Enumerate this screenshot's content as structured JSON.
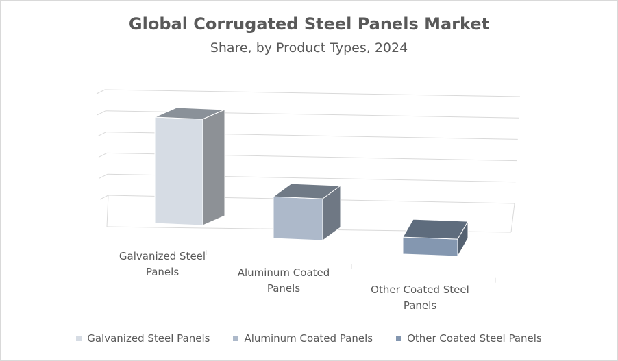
{
  "chart_data": {
    "type": "bar",
    "title": "Global Corrugated Steel Panels Market",
    "subtitle": "Share, by Product Types, 2024",
    "categories": [
      {
        "label_lines": [
          "Galvanized Steel",
          "Panels"
        ]
      },
      {
        "label_lines": [
          "Aluminum Coated",
          "Panels"
        ]
      },
      {
        "label_lines": [
          "Other Coated Steel",
          "Panels"
        ]
      }
    ],
    "values": [
      56,
      22,
      9
    ],
    "ylim": [
      0,
      70
    ],
    "gridlines": [
      0,
      14,
      28,
      42,
      56,
      70
    ],
    "legend": [
      {
        "name": "Galvanized Steel Panels",
        "color": "#d6dce4"
      },
      {
        "name": "Aluminum Coated Panels",
        "color": "#adb9ca"
      },
      {
        "name": "Other Coated Steel Panels",
        "color": "#8497b0"
      }
    ],
    "legend_position": "bottom",
    "colors": {
      "front": [
        "#d6dce4",
        "#adb9ca",
        "#8497b0"
      ],
      "top": [
        "#8a9199",
        "#707a86",
        "#5e6c7d"
      ],
      "side": [
        "#8d9196",
        "#6f7884",
        "#556272"
      ],
      "grid": "#d9d9d9",
      "text": "#595959"
    }
  }
}
